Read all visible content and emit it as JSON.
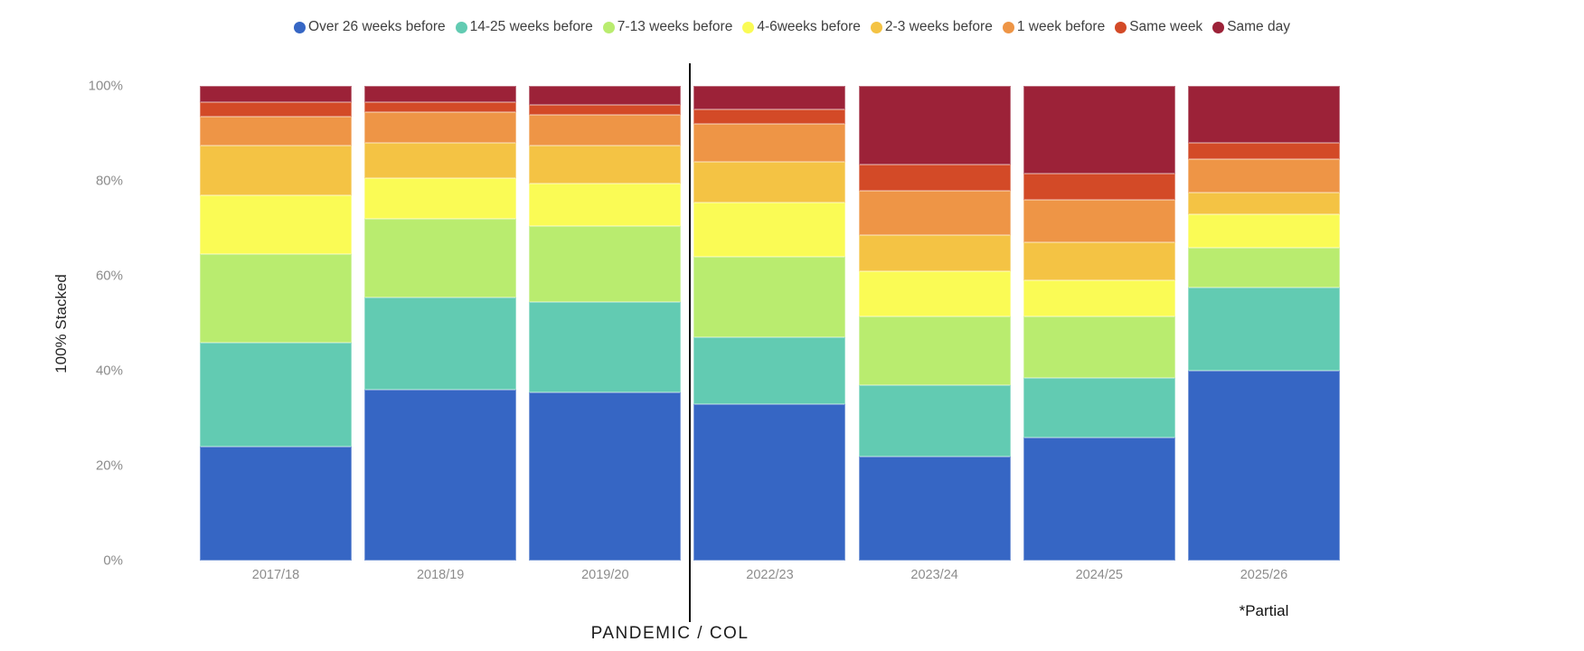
{
  "y_axis": {
    "title": "100% Stacked",
    "ticks": [
      "100%",
      "80%",
      "60%",
      "40%",
      "20%",
      "0%"
    ]
  },
  "bottom_label": "PANDEMIC / COL",
  "footnote": "*Partial",
  "chart_data": {
    "type": "bar",
    "variant": "100%-stacked-column",
    "title": "",
    "ylabel": "100% Stacked",
    "ylim": [
      0,
      100
    ],
    "grid": false,
    "legend_position": "top",
    "categories": [
      "2017/18",
      "2018/19",
      "2019/20",
      "2022/23",
      "2023/24",
      "2024/25",
      "2025/26"
    ],
    "divider_between": [
      "2019/20",
      "2022/23"
    ],
    "divider_label": "PANDEMIC / COL",
    "partial_category": "2025/26",
    "series": [
      {
        "name": "Over 26 weeks before",
        "color": "#3666C4",
        "values": [
          24,
          36,
          35.5,
          33,
          22,
          26,
          40
        ]
      },
      {
        "name": "14-25 weeks before",
        "color": "#62CBB2",
        "values": [
          22,
          19.5,
          19,
          14,
          15,
          12.5,
          17.5
        ]
      },
      {
        "name": "7-13 weeks before",
        "color": "#B9EC6F",
        "values": [
          18.5,
          16.5,
          16,
          17,
          14.5,
          13,
          8.5
        ]
      },
      {
        "name": "4-6weeks before",
        "color": "#FAFB55",
        "values": [
          12.5,
          8.5,
          9,
          11.5,
          9.5,
          7.5,
          7
        ]
      },
      {
        "name": "2-3 weeks before",
        "color": "#F4C344",
        "values": [
          10.5,
          7.5,
          8,
          8.5,
          7.5,
          8,
          4.5
        ]
      },
      {
        "name": "1 week before",
        "color": "#EE9546",
        "values": [
          6,
          6.5,
          6.5,
          8,
          9.5,
          9,
          7
        ]
      },
      {
        "name": "Same week",
        "color": "#D34A27",
        "values": [
          3,
          2,
          2,
          3,
          5.5,
          5.5,
          3.5
        ]
      },
      {
        "name": "Same day",
        "color": "#9C2238",
        "values": [
          3.5,
          3.5,
          4,
          5,
          16.5,
          18.5,
          12
        ]
      }
    ]
  }
}
